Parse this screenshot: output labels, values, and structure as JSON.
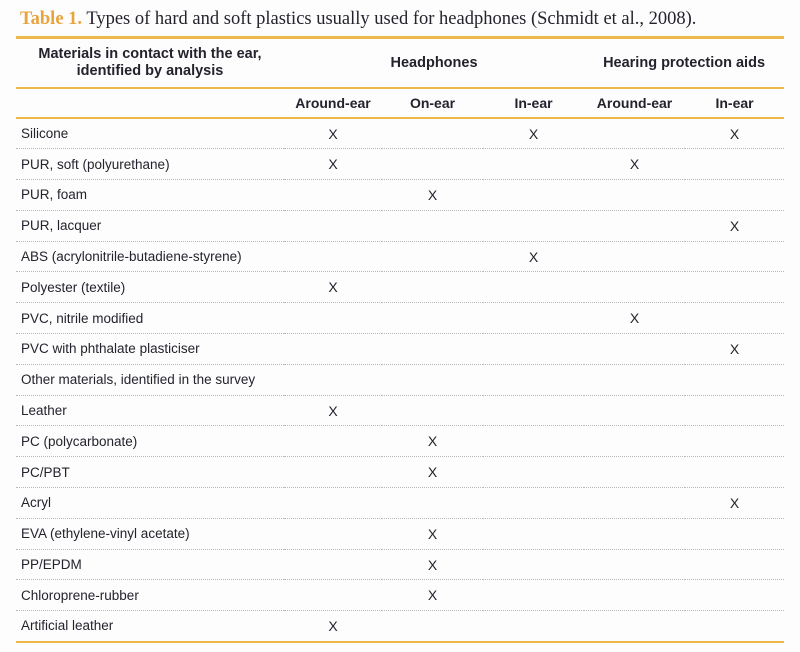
{
  "colors": {
    "accent_gold": "#e8a43d",
    "rule_gold": "#eeb84a",
    "text_dark": "#23232d",
    "separator": "#b8b8b8"
  },
  "title": {
    "label": "Table 1.",
    "text": "Types of hard and soft plastics usually used for headphones (Schmidt et al., 2008)."
  },
  "table": {
    "row_header": {
      "line1": "Materials in contact with the ear,",
      "line2": "identified by analysis"
    },
    "groups": [
      {
        "label": "Headphones",
        "span": 3
      },
      {
        "label": "Hearing protection aids",
        "span": 2
      }
    ],
    "columns": [
      "Around-ear",
      "On-ear",
      "In-ear",
      "Around-ear",
      "In-ear"
    ],
    "mark": "X",
    "rows": [
      {
        "material": "Silicone",
        "marks": [
          1,
          0,
          1,
          0,
          1
        ]
      },
      {
        "material": "PUR, soft (polyurethane)",
        "marks": [
          1,
          0,
          0,
          1,
          0
        ]
      },
      {
        "material": "PUR, foam",
        "marks": [
          0,
          1,
          0,
          0,
          0
        ]
      },
      {
        "material": "PUR, lacquer",
        "marks": [
          0,
          0,
          0,
          0,
          1
        ]
      },
      {
        "material": "ABS (acrylonitrile-butadiene-styrene)",
        "marks": [
          0,
          0,
          1,
          0,
          0
        ]
      },
      {
        "material": "Polyester (textile)",
        "marks": [
          1,
          0,
          0,
          0,
          0
        ]
      },
      {
        "material": "PVC, nitrile modified",
        "marks": [
          0,
          0,
          0,
          1,
          0
        ]
      },
      {
        "material": "PVC with phthalate plasticiser",
        "marks": [
          0,
          0,
          0,
          0,
          1
        ]
      },
      {
        "material": "Other materials, identified in the survey",
        "marks": [
          0,
          0,
          0,
          0,
          0
        ]
      },
      {
        "material": "Leather",
        "marks": [
          1,
          0,
          0,
          0,
          0
        ]
      },
      {
        "material": "PC (polycarbonate)",
        "marks": [
          0,
          1,
          0,
          0,
          0
        ]
      },
      {
        "material": "PC/PBT",
        "marks": [
          0,
          1,
          0,
          0,
          0
        ]
      },
      {
        "material": "Acryl",
        "marks": [
          0,
          0,
          0,
          0,
          1
        ]
      },
      {
        "material": "EVA (ethylene-vinyl acetate)",
        "marks": [
          0,
          1,
          0,
          0,
          0
        ]
      },
      {
        "material": "PP/EPDM",
        "marks": [
          0,
          1,
          0,
          0,
          0
        ]
      },
      {
        "material": "Chloroprene-rubber",
        "marks": [
          0,
          1,
          0,
          0,
          0
        ]
      },
      {
        "material": "Artificial leather",
        "marks": [
          1,
          0,
          0,
          0,
          0
        ]
      }
    ]
  }
}
